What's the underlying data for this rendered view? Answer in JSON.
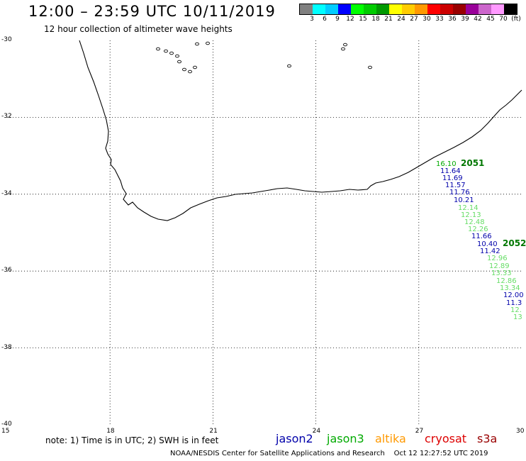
{
  "header": {
    "title": "12:00 – 23:59 UTC 10/11/2019",
    "subtitle": "12 hour collection of altimeter wave heights"
  },
  "colorbar": {
    "colors": [
      "#808080",
      "#00ffff",
      "#00ccff",
      "#0000ff",
      "#00ff00",
      "#00cc00",
      "#009900",
      "#ffff00",
      "#ffcc00",
      "#ff9900",
      "#ff0000",
      "#cc0000",
      "#990000",
      "#990099",
      "#cc66cc",
      "#ff99ff",
      "#000000"
    ],
    "labels": [
      "3",
      "6",
      "9",
      "12",
      "15",
      "18",
      "21",
      "24",
      "27",
      "30",
      "33",
      "36",
      "39",
      "42",
      "45",
      "70",
      "(ft)"
    ]
  },
  "map": {
    "lon_range": [
      15,
      30
    ],
    "lat_range": [
      -40,
      -30
    ],
    "x_ticks": [
      "15",
      "18",
      "21",
      "24",
      "27",
      "30"
    ],
    "y_ticks": [
      "-30",
      "-32",
      "-34",
      "-36",
      "-38",
      "-40"
    ],
    "grid": "dotted",
    "coastline": "South Africa southern coast",
    "track_labels": [
      {
        "text": "2051",
        "satellite": "jason3"
      },
      {
        "text": "2052",
        "satellite": "jason3"
      }
    ],
    "readings": [
      {
        "value": "16.10",
        "sat": "jason3"
      },
      {
        "value": "11.64",
        "sat": "jason2"
      },
      {
        "value": "11.69",
        "sat": "jason2"
      },
      {
        "value": "11.57",
        "sat": "jason2"
      },
      {
        "value": "11.76",
        "sat": "jason2"
      },
      {
        "value": "10.21",
        "sat": "jason2"
      },
      {
        "value": "12.14",
        "sat": "jason3"
      },
      {
        "value": "12.13",
        "sat": "jason3"
      },
      {
        "value": "12.48",
        "sat": "jason3"
      },
      {
        "value": "12.26",
        "sat": "jason3"
      },
      {
        "value": "11.66",
        "sat": "jason2"
      },
      {
        "value": "10.40",
        "sat": "jason2"
      },
      {
        "value": "11.42",
        "sat": "jason2"
      },
      {
        "value": "12.96",
        "sat": "jason3"
      },
      {
        "value": "12.89",
        "sat": "jason3"
      },
      {
        "value": "13.33",
        "sat": "jason3"
      },
      {
        "value": "12.86",
        "sat": "jason3"
      },
      {
        "value": "13.34",
        "sat": "jason3"
      },
      {
        "value": "12.00",
        "sat": "jason2"
      },
      {
        "value": "11.3",
        "sat": "jason2"
      },
      {
        "value": "12.",
        "sat": "jason3"
      },
      {
        "value": "13",
        "sat": "jason3"
      }
    ]
  },
  "satellite_colors": {
    "jason2": "#0000aa",
    "jason3": "#00aa00",
    "jason3_light": "#66dd66",
    "altika": "#ff9900",
    "cryosat": "#dd0000",
    "s3a": "#990000"
  },
  "legend": {
    "note": "note: 1) Time is in UTC; 2) SWH is in feet",
    "satellites": [
      "jason2",
      "jason3",
      "altika",
      "cryosat",
      "s3a"
    ]
  },
  "footer": {
    "credit": "NOAA/NESDIS Center for Satellite Applications and Research",
    "timestamp": "Oct 12 12:27:52 UTC 2019"
  }
}
